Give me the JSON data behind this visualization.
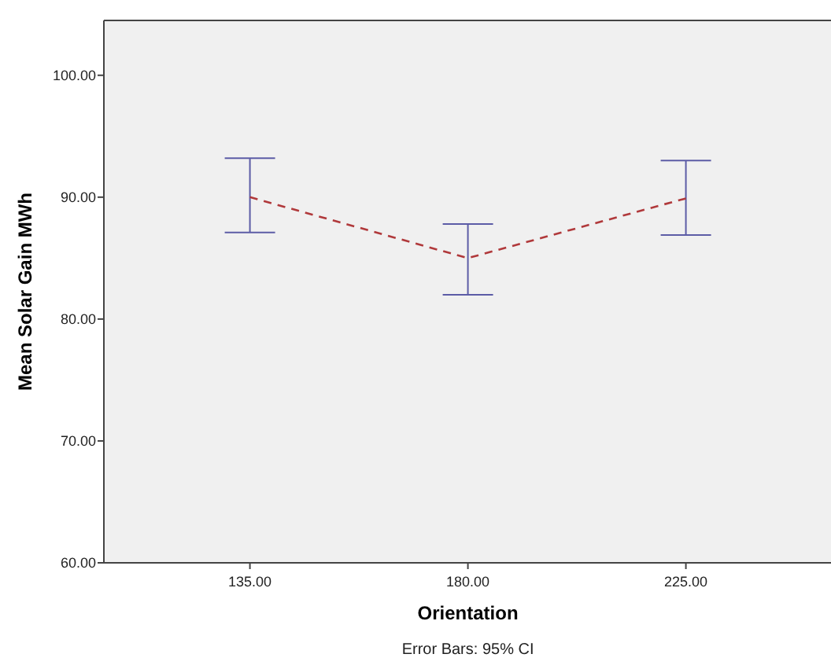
{
  "chart_data": {
    "type": "line",
    "xlabel": "Orientation",
    "ylabel": "Mean Solar Gain  MWh",
    "annotations": [
      "Error Bars: 95% CI"
    ],
    "categories": [
      "135.00",
      "180.00",
      "225.00"
    ],
    "series": [
      {
        "color": "#b0393b",
        "values": [
          90.0,
          85.0,
          89.9
        ],
        "errors": [
          [
            87.1,
            93.2
          ],
          [
            82.0,
            87.8
          ],
          [
            86.9,
            93.0
          ]
        ]
      }
    ],
    "ylim": [
      60,
      104.5
    ],
    "yticks": [
      {
        "value": 60,
        "label": "60.00"
      },
      {
        "value": 70,
        "label": "70.00"
      },
      {
        "value": 80,
        "label": "80.00"
      },
      {
        "value": 90,
        "label": "90.00"
      },
      {
        "value": 100,
        "label": "100.00"
      }
    ],
    "line_style": "dashed",
    "marker": "none"
  }
}
